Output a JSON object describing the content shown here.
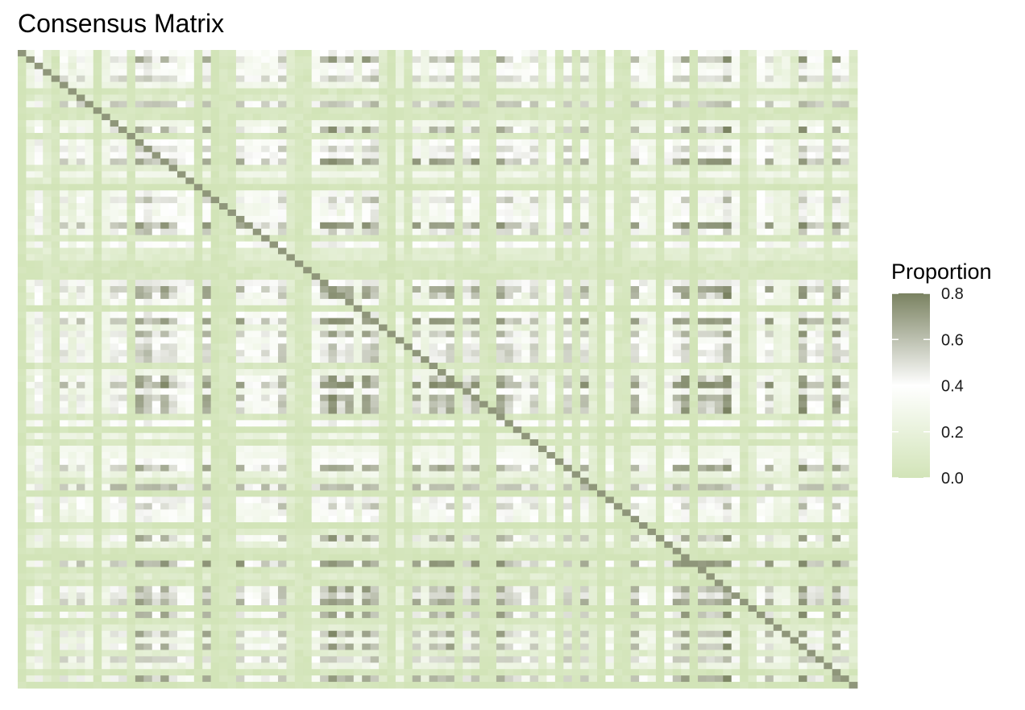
{
  "chart_data": {
    "type": "heatmap",
    "title": "Consensus Matrix",
    "xlabel": "",
    "ylabel": "",
    "legend": {
      "title": "Proportion",
      "position": "right",
      "ticks": [
        0.0,
        0.2,
        0.4,
        0.6,
        0.8
      ],
      "tick_labels": [
        "0.0",
        "0.2",
        "0.4",
        "0.6",
        "0.8"
      ],
      "range": [
        0,
        0.8
      ]
    },
    "colorscale": {
      "low": "#d2e4b8",
      "mid": "#ffffff",
      "high": "#7a8261",
      "midpoint": 0.4
    },
    "grid": false,
    "n_rows": 100,
    "n_cols": 100,
    "cluster_levels": [
      0.0,
      0.05,
      0.15,
      0.3,
      0.45,
      0.6,
      0.75,
      0.78
    ]
  }
}
